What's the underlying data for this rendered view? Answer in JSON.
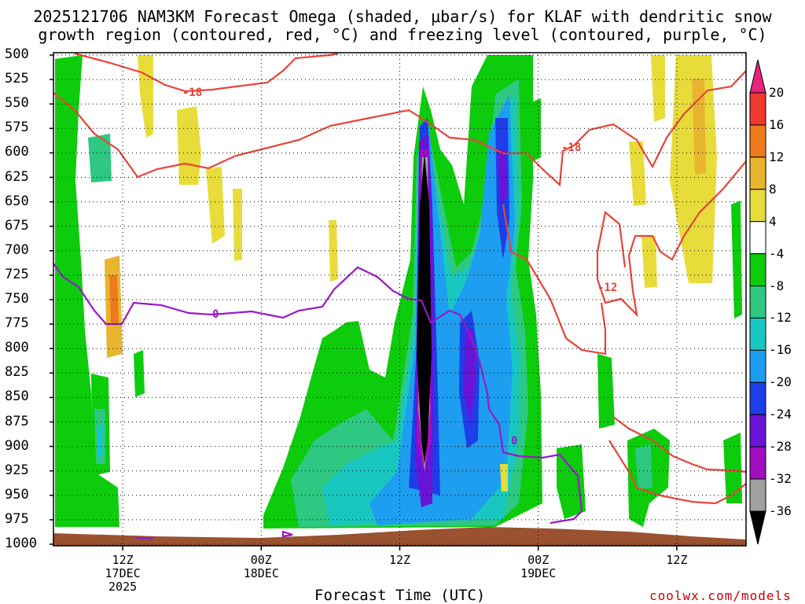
{
  "header": {
    "title_line1": "2025121706 NAM3KM Forecast Omega (shaded, μbar/s) for KLAF with dendritic snow",
    "title_line2": "growth region (contoured, red, °C) and freezing level (contoured, purple, °C)"
  },
  "footer": {
    "xlabel": "Forecast Time (UTC)",
    "credit": "coolwx.com/models"
  },
  "chart_data": {
    "type": "heatmap",
    "title": "2025121706 NAM3KM Forecast Omega (shaded, μbar/s) for KLAF with dendritic snow growth region (contoured, red, °C) and freezing level (contoured, purple, °C)",
    "xlabel": "Forecast Time (UTC)",
    "ylabel": "",
    "y_axis": {
      "scale": "pressure (hPa), inverted",
      "ticks": [
        500,
        525,
        550,
        575,
        600,
        625,
        650,
        675,
        700,
        725,
        750,
        775,
        800,
        825,
        850,
        875,
        900,
        925,
        950,
        975,
        1000
      ]
    },
    "x_axis": {
      "tick_labels": [
        {
          "lines": [
            "12Z",
            "17DEC",
            "2025"
          ]
        },
        {
          "lines": [
            "00Z",
            "18DEC"
          ]
        },
        {
          "lines": [
            "12Z"
          ]
        },
        {
          "lines": [
            "00Z",
            "19DEC"
          ]
        },
        {
          "lines": [
            "12Z"
          ]
        }
      ],
      "x_hours": [
        6,
        18,
        30,
        42,
        54
      ],
      "xlim_hours": [
        0,
        60
      ]
    },
    "grid": true,
    "colorbar": {
      "labels": [
        "20",
        "16",
        "12",
        "8",
        "4",
        "-4",
        "-8",
        "-12",
        "-16",
        "-20",
        "-24",
        "-28",
        "-32",
        "-36"
      ],
      "bins": [
        {
          "label": "20",
          "color": "#e8237a"
        },
        {
          "label": "16",
          "color": "#f03a2c"
        },
        {
          "label": "12",
          "color": "#ed7a1c"
        },
        {
          "label": "8",
          "color": "#e8b52e"
        },
        {
          "label": "4",
          "color": "#e8dc3a"
        },
        {
          "label": "-4",
          "color": "#ffffff"
        },
        {
          "label": "-8",
          "color": "#0ccc0c"
        },
        {
          "label": "-12",
          "color": "#2ec882"
        },
        {
          "label": "-16",
          "color": "#18c8c0"
        },
        {
          "label": "-20",
          "color": "#1e9ef0"
        },
        {
          "label": "-24",
          "color": "#1e3ee8"
        },
        {
          "label": "-28",
          "color": "#6a14d8"
        },
        {
          "label": "-32",
          "color": "#a00ec0"
        },
        {
          "label": "-36",
          "color": "#a0a0a0"
        },
        {
          "label": "",
          "color": "#000000"
        }
      ]
    },
    "contours": [
      {
        "color": "#e8443a",
        "labels": [
          "-18",
          "-18",
          "-12"
        ]
      },
      {
        "color": "#9a18c8",
        "labels": [
          "0",
          "0"
        ]
      }
    ],
    "terrain_color": "#9a5230"
  }
}
